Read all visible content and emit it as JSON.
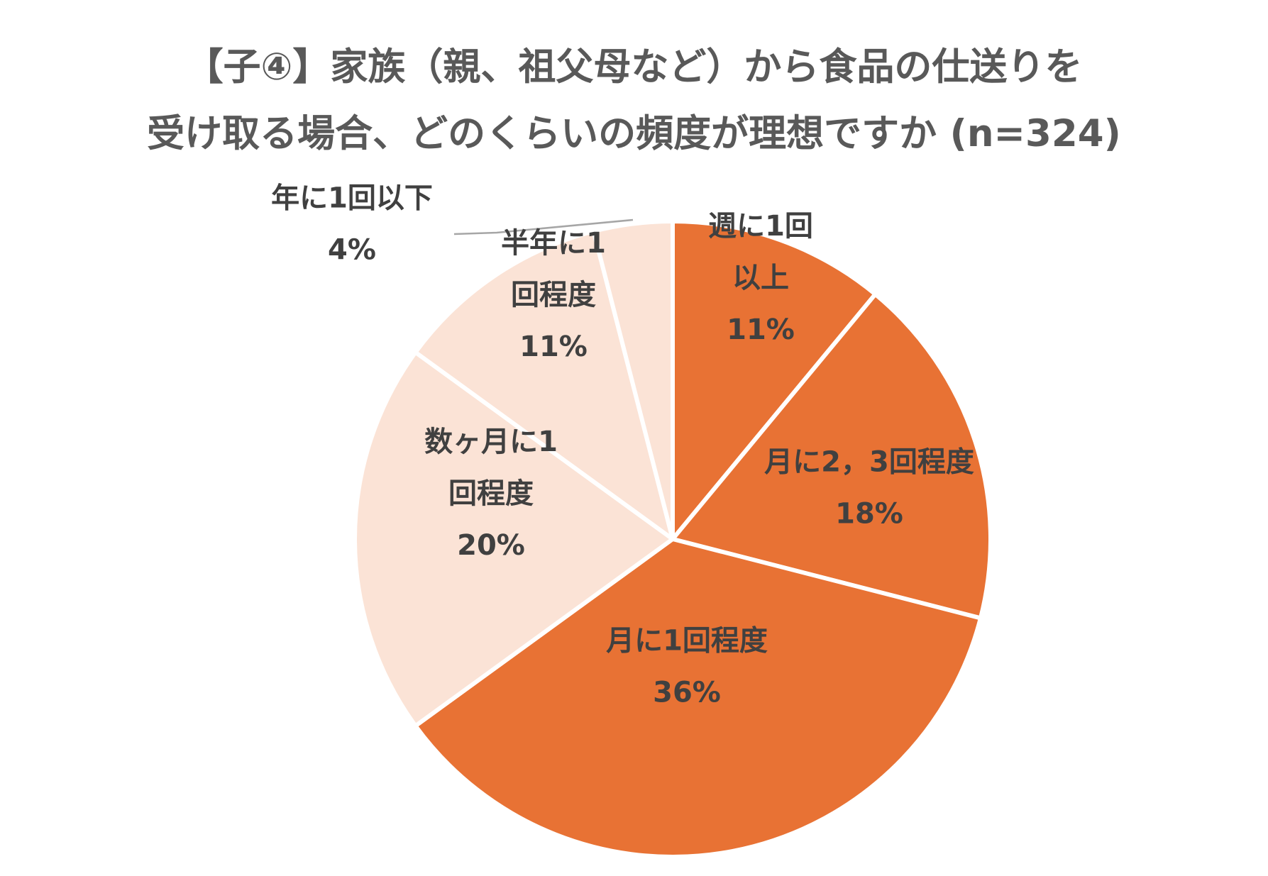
{
  "chart_data": {
    "type": "pie",
    "title": "【子④】家族（親、祖父母など）から食品の仕送りを",
    "subtitle": "受け取る場合、どのくらいの頻度が理想ですか (n=324)",
    "start": "12 o'clock",
    "direction": "clockwise",
    "legend": "none",
    "slices": [
      {
        "label": "週に1回以上",
        "label_lines": [
          "週に1回",
          "以上"
        ],
        "value": 11,
        "percent_label": "11%",
        "color": "#E87234"
      },
      {
        "label": "月に2，3回程度",
        "label_lines": [
          "月に2，3回程度"
        ],
        "value": 18,
        "percent_label": "18%",
        "color": "#E87234"
      },
      {
        "label": "月に1回程度",
        "label_lines": [
          "月に1回程度"
        ],
        "value": 36,
        "percent_label": "36%",
        "color": "#E87234"
      },
      {
        "label": "数ヶ月に1回程度",
        "label_lines": [
          "数ヶ月に1",
          "回程度"
        ],
        "value": 20,
        "percent_label": "20%",
        "color": "#FBE3D6"
      },
      {
        "label": "半年に1回程度",
        "label_lines": [
          "半年に1",
          "回程度"
        ],
        "value": 11,
        "percent_label": "11%",
        "color": "#FBE3D6"
      },
      {
        "label": "年に1回以下",
        "label_lines": [
          "年に1回以下"
        ],
        "value": 4,
        "percent_label": "4%",
        "color": "#FBE3D6"
      }
    ]
  }
}
